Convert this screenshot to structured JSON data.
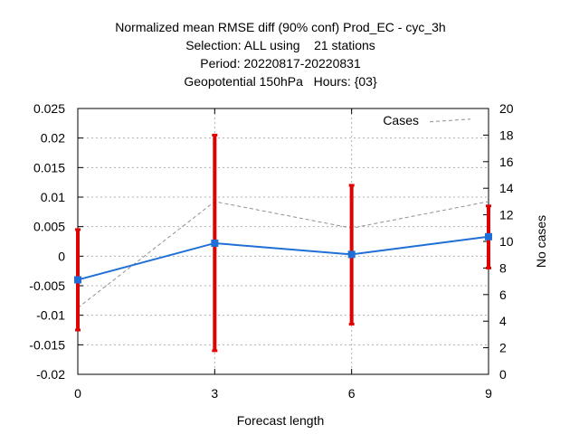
{
  "chart_data": {
    "type": "line",
    "title_lines": [
      "Normalized mean RMSE diff (90% conf) Prod_EC - cyc_3h",
      "Selection: ALL using    21 stations",
      "Period: 20220817-20220831",
      "Geopotential 150hPa   Hours: {03}"
    ],
    "xlabel": "Forecast length",
    "ylabel": "",
    "y2label": "No cases",
    "x": [
      0,
      3,
      6,
      9
    ],
    "xlim": [
      0,
      9
    ],
    "ylim": [
      -0.02,
      0.025
    ],
    "y2lim": [
      0,
      20
    ],
    "x_ticks": [
      "0",
      "3",
      "6",
      "9"
    ],
    "y_ticks": [
      "0.025",
      "0.02",
      "0.015",
      "0.01",
      "0.005",
      "0",
      "-0.005",
      "-0.01",
      "-0.015",
      "-0.02"
    ],
    "y_tick_values": [
      0.025,
      0.02,
      0.015,
      0.01,
      0.005,
      0,
      -0.005,
      -0.01,
      -0.015,
      -0.02
    ],
    "y2_ticks": [
      "20",
      "18",
      "16",
      "14",
      "12",
      "10",
      "8",
      "6",
      "4",
      "2",
      "0"
    ],
    "y2_tick_values": [
      20,
      18,
      16,
      14,
      12,
      10,
      8,
      6,
      4,
      2,
      0
    ],
    "grid": true,
    "legend_position": "top-right",
    "series": [
      {
        "kind": "mean",
        "values": [
          -0.004,
          0.0022,
          0.0003,
          0.0033
        ],
        "color": "#1f6fd6"
      },
      {
        "kind": "errorbars",
        "lower": [
          -0.0125,
          -0.016,
          -0.0115,
          -0.002
        ],
        "upper": [
          0.0045,
          0.0205,
          0.012,
          0.0085
        ],
        "color": "#e00000"
      },
      {
        "name": "Cases",
        "axis": "y2",
        "values": [
          5,
          13,
          11,
          13
        ],
        "legend_sample": [
          19,
          19.2
        ],
        "color": "#909090",
        "dashed": true
      }
    ]
  }
}
